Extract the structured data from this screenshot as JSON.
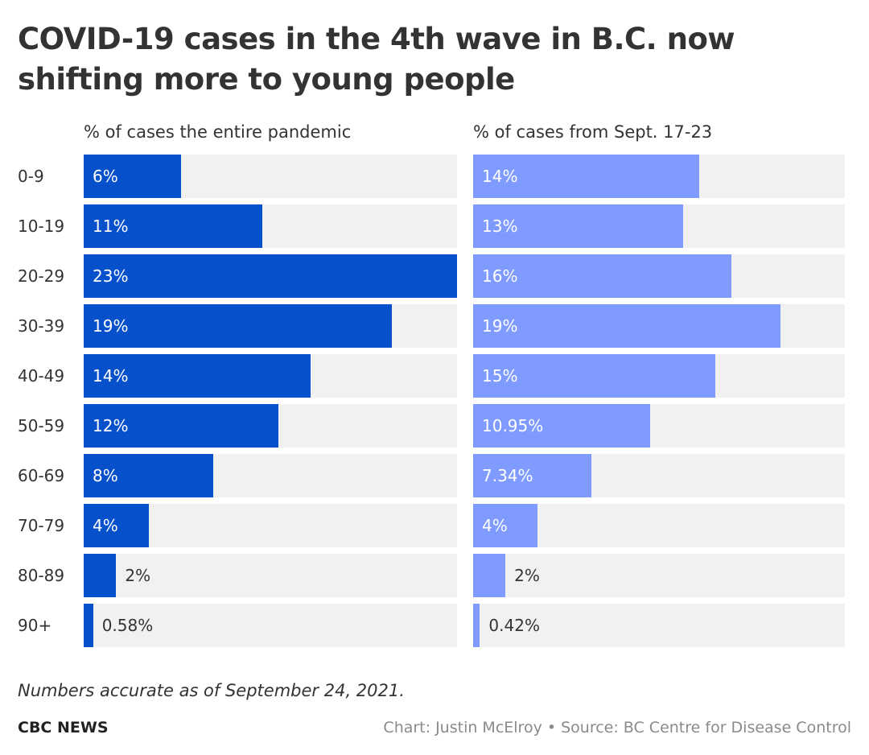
{
  "title": "COVID-19 cases in the 4th wave in B.C. now shifting more to young people",
  "footer": {
    "note": "Numbers accurate as of September 24, 2021.",
    "brand": "CBC NEWS",
    "credit": "Chart: Justin McElroy • Source: BC Centre for Disease Control"
  },
  "chart_data": {
    "type": "bar",
    "orientation": "horizontal",
    "categories": [
      "0-9",
      "10-19",
      "20-29",
      "30-39",
      "40-49",
      "50-59",
      "60-69",
      "70-79",
      "80-89",
      "90+"
    ],
    "xlim": [
      0,
      23
    ],
    "grid": false,
    "series": [
      {
        "name": "% of cases the entire pandemic",
        "values": [
          6,
          11,
          23,
          19,
          14,
          12,
          8,
          4,
          2,
          0.58
        ],
        "labels": [
          "6%",
          "11%",
          "23%",
          "19%",
          "14%",
          "12%",
          "8%",
          "4%",
          "2%",
          "0.58%"
        ],
        "color": "#0651cb"
      },
      {
        "name": "% of cases from Sept. 17-23",
        "values": [
          14,
          13,
          16,
          19,
          15,
          10.95,
          7.34,
          4,
          2,
          0.42
        ],
        "labels": [
          "14%",
          "13%",
          "16%",
          "19%",
          "15%",
          "10.95%",
          "7.34%",
          "4%",
          "2%",
          "0.42%"
        ],
        "color": "#7f9bff"
      }
    ]
  }
}
